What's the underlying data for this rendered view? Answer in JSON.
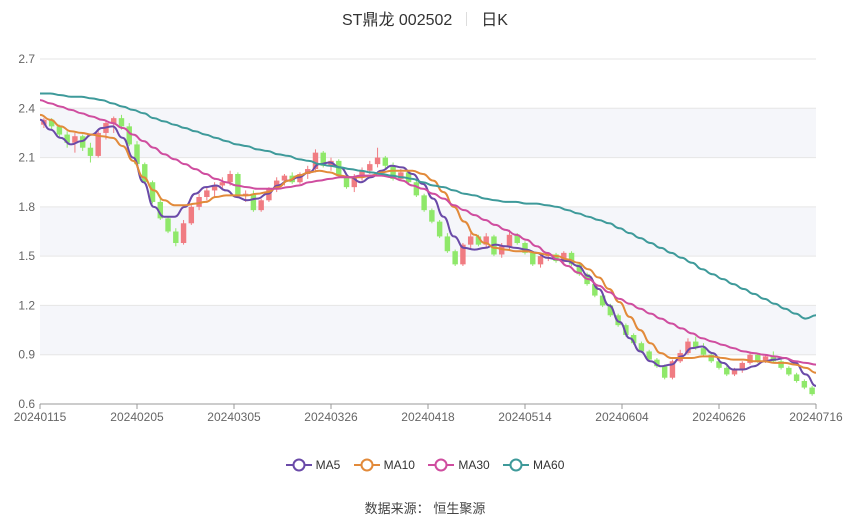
{
  "title": {
    "stock": "ST鼎龙 002502",
    "period": "日K"
  },
  "source": {
    "label": "数据来源：",
    "value": "恒生聚源"
  },
  "colors": {
    "up": "#f07c82",
    "down": "#8fe86a",
    "grid": "#e6e6e6",
    "band": "#f5f6fa",
    "axis": "#666666"
  },
  "chart_data": {
    "type": "candlestick",
    "y_axis": {
      "min": 0.6,
      "max": 2.7,
      "ticks": [
        "2.7",
        "2.4",
        "2.1",
        "1.8",
        "1.5",
        "1.2",
        "0.9",
        "0.6"
      ]
    },
    "x_axis": {
      "ticks": [
        "20240115",
        "20240205",
        "20240305",
        "20240326",
        "20240418",
        "20240514",
        "20240604",
        "20240626",
        "20240716"
      ]
    },
    "legend_position": "bottom",
    "candles_ohlc": [
      [
        2.3,
        2.34,
        2.28,
        2.33
      ],
      [
        2.33,
        2.34,
        2.27,
        2.29
      ],
      [
        2.29,
        2.3,
        2.22,
        2.24
      ],
      [
        2.24,
        2.26,
        2.16,
        2.19
      ],
      [
        2.19,
        2.25,
        2.13,
        2.23
      ],
      [
        2.23,
        2.24,
        2.14,
        2.16
      ],
      [
        2.16,
        2.19,
        2.07,
        2.11
      ],
      [
        2.11,
        2.27,
        2.1,
        2.25
      ],
      [
        2.25,
        2.33,
        2.21,
        2.31
      ],
      [
        2.31,
        2.35,
        2.25,
        2.34
      ],
      [
        2.34,
        2.36,
        2.27,
        2.29
      ],
      [
        2.29,
        2.31,
        2.17,
        2.18
      ],
      [
        2.18,
        2.2,
        2.05,
        2.06
      ],
      [
        2.06,
        2.07,
        1.94,
        1.95
      ],
      [
        1.95,
        1.96,
        1.82,
        1.83
      ],
      [
        1.83,
        1.85,
        1.72,
        1.73
      ],
      [
        1.73,
        1.74,
        1.64,
        1.65
      ],
      [
        1.65,
        1.67,
        1.56,
        1.58
      ],
      [
        1.58,
        1.72,
        1.57,
        1.7
      ],
      [
        1.7,
        1.81,
        1.69,
        1.8
      ],
      [
        1.8,
        1.88,
        1.78,
        1.86
      ],
      [
        1.86,
        1.92,
        1.84,
        1.9
      ],
      [
        1.9,
        1.95,
        1.86,
        1.93
      ],
      [
        1.93,
        1.98,
        1.9,
        1.95
      ],
      [
        1.95,
        2.02,
        1.93,
        2.0
      ],
      [
        2.0,
        2.01,
        1.86,
        1.87
      ],
      [
        1.87,
        1.9,
        1.83,
        1.88
      ],
      [
        1.88,
        1.9,
        1.77,
        1.78
      ],
      [
        1.78,
        1.85,
        1.77,
        1.84
      ],
      [
        1.84,
        1.92,
        1.83,
        1.91
      ],
      [
        1.91,
        1.98,
        1.89,
        1.96
      ],
      [
        1.96,
        2.0,
        1.93,
        1.99
      ],
      [
        1.99,
        2.01,
        1.94,
        1.95
      ],
      [
        1.95,
        2.01,
        1.94,
        2.0
      ],
      [
        2.0,
        2.05,
        1.97,
        2.03
      ],
      [
        2.03,
        2.15,
        2.01,
        2.13
      ],
      [
        2.13,
        2.14,
        2.04,
        2.05
      ],
      [
        2.05,
        2.1,
        2.02,
        2.08
      ],
      [
        2.08,
        2.09,
        1.98,
        1.99
      ],
      [
        1.99,
        2.0,
        1.91,
        1.92
      ],
      [
        1.92,
        2.0,
        1.89,
        1.98
      ],
      [
        1.98,
        2.04,
        1.96,
        2.02
      ],
      [
        2.02,
        2.08,
        2.0,
        2.06
      ],
      [
        2.06,
        2.16,
        2.04,
        2.1
      ],
      [
        2.1,
        2.11,
        2.03,
        2.05
      ],
      [
        2.05,
        2.07,
        1.96,
        1.97
      ],
      [
        1.97,
        2.03,
        1.96,
        2.01
      ],
      [
        2.01,
        2.02,
        1.94,
        1.95
      ],
      [
        1.95,
        1.96,
        1.86,
        1.87
      ],
      [
        1.87,
        1.88,
        1.77,
        1.78
      ],
      [
        1.78,
        1.79,
        1.7,
        1.71
      ],
      [
        1.71,
        1.72,
        1.61,
        1.62
      ],
      [
        1.62,
        1.64,
        1.52,
        1.53
      ],
      [
        1.53,
        1.54,
        1.44,
        1.45
      ],
      [
        1.45,
        1.58,
        1.44,
        1.57
      ],
      [
        1.57,
        1.64,
        1.55,
        1.62
      ],
      [
        1.62,
        1.63,
        1.56,
        1.57
      ],
      [
        1.57,
        1.64,
        1.55,
        1.62
      ],
      [
        1.62,
        1.63,
        1.5,
        1.51
      ],
      [
        1.51,
        1.58,
        1.49,
        1.56
      ],
      [
        1.56,
        1.66,
        1.54,
        1.63
      ],
      [
        1.63,
        1.64,
        1.57,
        1.58
      ],
      [
        1.58,
        1.59,
        1.51,
        1.52
      ],
      [
        1.52,
        1.53,
        1.44,
        1.45
      ],
      [
        1.45,
        1.51,
        1.43,
        1.5
      ],
      [
        1.5,
        1.52,
        1.47,
        1.51
      ],
      [
        1.51,
        1.52,
        1.46,
        1.47
      ],
      [
        1.47,
        1.53,
        1.46,
        1.52
      ],
      [
        1.52,
        1.53,
        1.44,
        1.45
      ],
      [
        1.45,
        1.46,
        1.38,
        1.39
      ],
      [
        1.39,
        1.4,
        1.32,
        1.33
      ],
      [
        1.33,
        1.34,
        1.25,
        1.26
      ],
      [
        1.26,
        1.27,
        1.19,
        1.2
      ],
      [
        1.2,
        1.21,
        1.13,
        1.14
      ],
      [
        1.14,
        1.15,
        1.07,
        1.08
      ],
      [
        1.08,
        1.09,
        1.01,
        1.02
      ],
      [
        1.02,
        1.03,
        0.96,
        0.97
      ],
      [
        0.97,
        0.98,
        0.91,
        0.92
      ],
      [
        0.92,
        0.93,
        0.86,
        0.87
      ],
      [
        0.87,
        0.88,
        0.82,
        0.83
      ],
      [
        0.83,
        0.84,
        0.75,
        0.76
      ],
      [
        0.76,
        0.87,
        0.75,
        0.86
      ],
      [
        0.86,
        0.93,
        0.85,
        0.91
      ],
      [
        0.91,
        1.0,
        0.9,
        0.98
      ],
      [
        0.98,
        1.01,
        0.93,
        0.94
      ],
      [
        0.94,
        0.97,
        0.89,
        0.9
      ],
      [
        0.9,
        0.91,
        0.85,
        0.86
      ],
      [
        0.86,
        0.87,
        0.81,
        0.82
      ],
      [
        0.82,
        0.83,
        0.77,
        0.78
      ],
      [
        0.78,
        0.82,
        0.77,
        0.81
      ],
      [
        0.81,
        0.86,
        0.79,
        0.85
      ],
      [
        0.85,
        0.91,
        0.84,
        0.9
      ],
      [
        0.9,
        0.91,
        0.85,
        0.86
      ],
      [
        0.86,
        0.9,
        0.85,
        0.89
      ],
      [
        0.89,
        0.92,
        0.85,
        0.86
      ],
      [
        0.86,
        0.87,
        0.81,
        0.82
      ],
      [
        0.82,
        0.83,
        0.77,
        0.78
      ],
      [
        0.78,
        0.79,
        0.73,
        0.74
      ],
      [
        0.74,
        0.75,
        0.69,
        0.7
      ],
      [
        0.7,
        0.71,
        0.65,
        0.66
      ]
    ],
    "series": [
      {
        "name": "MA5",
        "color": "#6a4aa8",
        "values": [
          2.33,
          2.27,
          2.22,
          2.18,
          2.2,
          2.24,
          2.28,
          2.29,
          2.22,
          2.1,
          1.95,
          1.8,
          1.74,
          1.74,
          1.8,
          1.88,
          1.92,
          1.93,
          1.9,
          1.86,
          1.84,
          1.85,
          1.88,
          1.93,
          1.96,
          1.98,
          2.01,
          2.06,
          2.07,
          2.04,
          1.98,
          1.95,
          1.98,
          2.02,
          2.05,
          2.04,
          2.0,
          1.94,
          1.85,
          1.74,
          1.62,
          1.55,
          1.54,
          1.55,
          1.57,
          1.56,
          1.55,
          1.54,
          1.52,
          1.49,
          1.48,
          1.47,
          1.44,
          1.38,
          1.3,
          1.2,
          1.1,
          1.0,
          0.92,
          0.86,
          0.83,
          0.84,
          0.89,
          0.94,
          0.95,
          0.91,
          0.85,
          0.81,
          0.81,
          0.83,
          0.86,
          0.87,
          0.88,
          0.85,
          0.78,
          0.71
        ]
      },
      {
        "name": "MA10",
        "color": "#e28a3a",
        "values": [
          2.36,
          2.33,
          2.29,
          2.26,
          2.25,
          2.24,
          2.23,
          2.22,
          2.17,
          2.08,
          1.98,
          1.9,
          1.84,
          1.81,
          1.81,
          1.82,
          1.83,
          1.86,
          1.87,
          1.87,
          1.87,
          1.88,
          1.89,
          1.92,
          1.96,
          1.99,
          2.01,
          2.02,
          2.01,
          1.99,
          1.98,
          1.98,
          1.99,
          2.01,
          2.02,
          2.02,
          2.02,
          2.0,
          1.96,
          1.89,
          1.8,
          1.71,
          1.63,
          1.58,
          1.55,
          1.54,
          1.53,
          1.53,
          1.52,
          1.51,
          1.5,
          1.48,
          1.46,
          1.42,
          1.37,
          1.3,
          1.22,
          1.13,
          1.05,
          0.97,
          0.91,
          0.88,
          0.88,
          0.88,
          0.89,
          0.89,
          0.88,
          0.87,
          0.87,
          0.86,
          0.86,
          0.85,
          0.85,
          0.84,
          0.82,
          0.79
        ]
      },
      {
        "name": "MA30",
        "color": "#cf4d9f",
        "values": [
          2.45,
          2.43,
          2.41,
          2.39,
          2.37,
          2.35,
          2.33,
          2.31,
          2.28,
          2.24,
          2.2,
          2.16,
          2.12,
          2.09,
          2.06,
          2.03,
          2.0,
          1.97,
          1.95,
          1.93,
          1.92,
          1.91,
          1.91,
          1.91,
          1.92,
          1.93,
          1.95,
          1.96,
          1.97,
          1.98,
          1.98,
          1.99,
          1.99,
          1.99,
          1.98,
          1.96,
          1.93,
          1.91,
          1.88,
          1.85,
          1.81,
          1.78,
          1.75,
          1.72,
          1.69,
          1.66,
          1.63,
          1.6,
          1.56,
          1.52,
          1.48,
          1.44,
          1.4,
          1.36,
          1.32,
          1.28,
          1.24,
          1.21,
          1.18,
          1.15,
          1.12,
          1.09,
          1.06,
          1.03,
          1.0,
          0.98,
          0.96,
          0.94,
          0.92,
          0.91,
          0.9,
          0.89,
          0.88,
          0.86,
          0.85,
          0.84
        ]
      },
      {
        "name": "MA60",
        "color": "#3e9a9a",
        "values": [
          2.49,
          2.49,
          2.48,
          2.47,
          2.47,
          2.46,
          2.45,
          2.43,
          2.41,
          2.39,
          2.37,
          2.34,
          2.32,
          2.3,
          2.28,
          2.26,
          2.24,
          2.22,
          2.2,
          2.18,
          2.17,
          2.15,
          2.14,
          2.12,
          2.11,
          2.09,
          2.08,
          2.06,
          2.05,
          2.04,
          2.03,
          2.02,
          2.01,
          2.0,
          1.99,
          1.98,
          1.97,
          1.95,
          1.93,
          1.92,
          1.9,
          1.88,
          1.87,
          1.85,
          1.84,
          1.83,
          1.83,
          1.82,
          1.82,
          1.81,
          1.8,
          1.78,
          1.76,
          1.74,
          1.72,
          1.7,
          1.67,
          1.64,
          1.61,
          1.58,
          1.55,
          1.52,
          1.49,
          1.46,
          1.42,
          1.39,
          1.36,
          1.33,
          1.3,
          1.27,
          1.24,
          1.21,
          1.18,
          1.15,
          1.12,
          1.14
        ]
      }
    ]
  }
}
